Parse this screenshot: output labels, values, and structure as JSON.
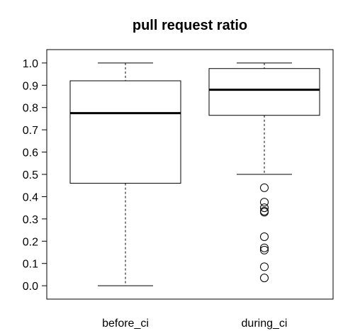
{
  "chart_data": {
    "type": "box",
    "title": "pull request ratio",
    "xlabel": "",
    "ylabel": "",
    "ylim": [
      -0.06,
      1.06
    ],
    "yticks": [
      "0.0",
      "0.1",
      "0.2",
      "0.3",
      "0.4",
      "0.5",
      "0.6",
      "0.7",
      "0.8",
      "0.9",
      "1.0"
    ],
    "categories": [
      "before_ci",
      "during_ci"
    ],
    "boxes": [
      {
        "min": 0.0,
        "q1": 0.46,
        "median": 0.775,
        "q3": 0.92,
        "max": 1.0,
        "outliers": []
      },
      {
        "min": 0.5,
        "q1": 0.765,
        "median": 0.88,
        "q3": 0.975,
        "max": 1.0,
        "outliers": [
          0.44,
          0.375,
          0.35,
          0.335,
          0.33,
          0.22,
          0.17,
          0.16,
          0.085,
          0.035
        ]
      }
    ],
    "grid": false,
    "legend": "none"
  }
}
